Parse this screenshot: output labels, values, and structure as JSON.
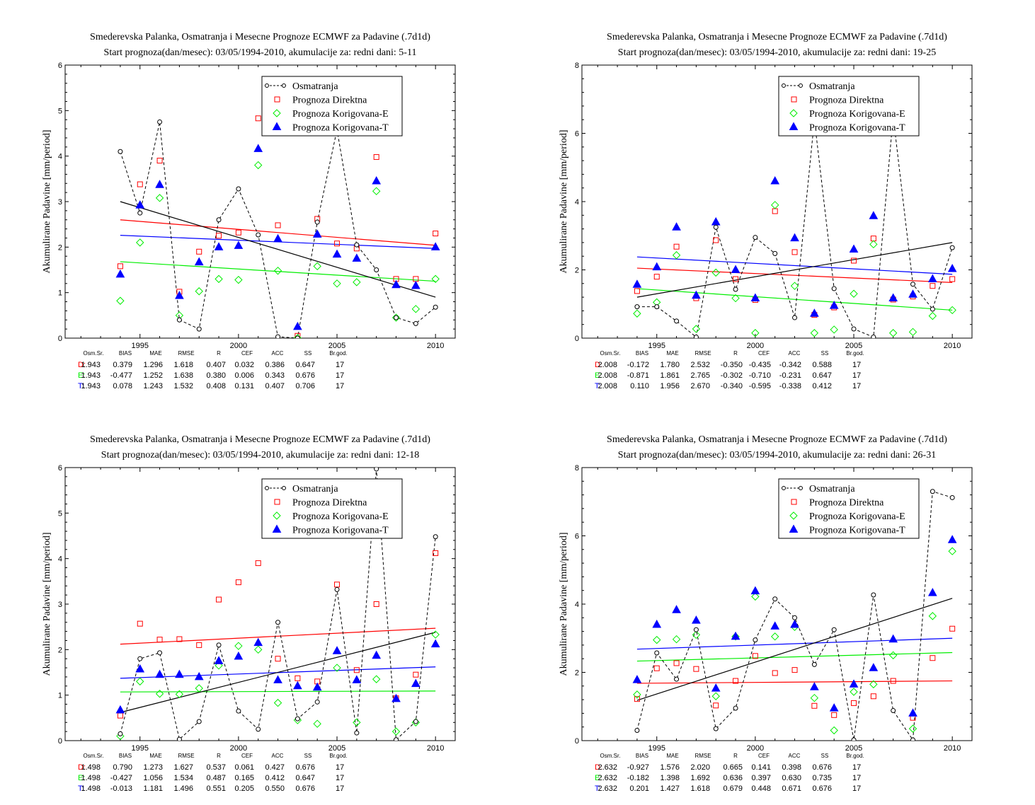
{
  "colors": {
    "obs": "#000000",
    "direct": "#ff0000",
    "corrE": "#00ee00",
    "corrT": "#0000ff"
  },
  "legend": [
    "Osmatranja",
    "Prognoza Direktna",
    "Prognoza Korigovana-E",
    "Prognoza Korigovana-T"
  ],
  "stats_header": [
    "Osm.Sr.",
    "BIAS",
    "MAE",
    "RMSE",
    "R",
    "CEF",
    "ACC",
    "SS",
    "Br.god."
  ],
  "chart_data": [
    {
      "type": "scatter",
      "title": "Smederevska Palanka, Osmatranja i Mesecne Prognoze ECMWF za Padavine (.7d1d)",
      "subtitle": "Start prognoza(dan/mesec): 03/05/1994-2010, akumulacije za: redni dani: 5-11",
      "ylabel": "Akumulirane Padavine [mm/period]",
      "xlabel": "",
      "xlim": [
        1991.2,
        2011
      ],
      "ylim": [
        0,
        6
      ],
      "x_ticks": [
        1995,
        2000,
        2005,
        2010
      ],
      "y_ticks": [
        0,
        1,
        2,
        3,
        4,
        5,
        6
      ],
      "x": [
        1994,
        1995,
        1996,
        1997,
        1998,
        1999,
        2000,
        2001,
        2002,
        2003,
        2004,
        2005,
        2006,
        2007,
        2008,
        2009,
        2010
      ],
      "series": [
        {
          "name": "Osmatranja",
          "values": [
            4.1,
            2.75,
            4.75,
            0.4,
            0.2,
            2.6,
            3.28,
            2.27,
            0.03,
            0.0,
            2.55,
            4.58,
            2.05,
            1.5,
            0.45,
            0.32,
            0.68
          ]
        },
        {
          "name": "Prognoza Direktna",
          "values": [
            1.58,
            3.38,
            3.9,
            1.02,
            1.9,
            2.25,
            2.32,
            4.83,
            2.48,
            0.05,
            2.62,
            2.08,
            1.97,
            3.98,
            1.3,
            1.3,
            2.3
          ]
        },
        {
          "name": "Prognoza Korigovana-E",
          "values": [
            0.82,
            2.1,
            3.08,
            0.5,
            1.03,
            1.3,
            1.28,
            3.8,
            1.48,
            0.0,
            1.58,
            1.2,
            1.23,
            3.23,
            0.45,
            0.64,
            1.3
          ]
        },
        {
          "name": "Prognoza Korigovana-T",
          "values": [
            1.4,
            2.92,
            3.37,
            0.93,
            1.67,
            2.0,
            2.03,
            4.16,
            2.18,
            0.25,
            2.28,
            1.84,
            1.75,
            3.45,
            1.17,
            1.15,
            2.0
          ]
        }
      ],
      "trends": {
        "obs": [
          3.0,
          0.9
        ],
        "direct": [
          2.6,
          2.04
        ],
        "corrE": [
          1.68,
          1.25
        ],
        "corrT": [
          2.26,
          1.97
        ]
      },
      "stats": [
        {
          "label": "D:",
          "values": [
            "1.943",
            "0.379",
            "1.296",
            "1.618",
            "0.407",
            "0.032",
            "0.386",
            "0.647",
            "17"
          ]
        },
        {
          "label": "E:",
          "values": [
            "1.943",
            "-0.477",
            "1.252",
            "1.638",
            "0.380",
            "0.006",
            "0.343",
            "0.676",
            "17"
          ]
        },
        {
          "label": "T:",
          "values": [
            "1.943",
            "0.078",
            "1.243",
            "1.532",
            "0.408",
            "0.131",
            "0.407",
            "0.706",
            "17"
          ]
        }
      ]
    },
    {
      "type": "scatter",
      "title": "Smederevska Palanka, Osmatranja i Mesecne Prognoze ECMWF za Padavine (.7d1d)",
      "subtitle": "Start prognoza(dan/mesec): 03/05/1994-2010, akumulacije za: redni dani: 19-25",
      "ylabel": "Akumulirane Padavine [mm/period]",
      "xlabel": "",
      "xlim": [
        1991.2,
        2011
      ],
      "ylim": [
        0,
        8
      ],
      "x_ticks": [
        1995,
        2000,
        2005,
        2010
      ],
      "y_ticks": [
        0,
        2,
        4,
        6,
        8
      ],
      "x": [
        1994,
        1995,
        1996,
        1997,
        1998,
        1999,
        2000,
        2001,
        2002,
        2003,
        2004,
        2005,
        2006,
        2007,
        2008,
        2009,
        2010
      ],
      "series": [
        {
          "name": "Osmatranja",
          "values": [
            0.92,
            0.92,
            0.5,
            0.03,
            3.25,
            1.43,
            2.95,
            2.48,
            0.6,
            6.4,
            1.45,
            0.27,
            0.03,
            6.5,
            1.58,
            0.85,
            2.65
          ]
        },
        {
          "name": "Prognoza Direktna",
          "values": [
            1.38,
            1.8,
            2.68,
            1.17,
            2.87,
            1.73,
            1.12,
            3.72,
            2.52,
            0.68,
            0.9,
            2.27,
            2.92,
            1.13,
            1.22,
            1.53,
            1.73
          ]
        },
        {
          "name": "Prognoza Korigovana-E",
          "values": [
            0.72,
            1.05,
            2.43,
            0.27,
            1.92,
            1.17,
            0.15,
            3.9,
            1.53,
            0.15,
            0.25,
            1.3,
            2.75,
            0.15,
            0.18,
            0.65,
            0.82
          ]
        },
        {
          "name": "Prognoza Korigovana-T",
          "values": [
            1.57,
            2.08,
            3.25,
            1.25,
            3.4,
            2.0,
            1.17,
            4.6,
            2.93,
            0.72,
            0.95,
            2.6,
            3.58,
            1.17,
            1.28,
            1.73,
            2.03
          ]
        }
      ],
      "trends": {
        "obs": [
          1.2,
          2.8
        ],
        "direct": [
          2.05,
          1.63
        ],
        "corrE": [
          1.45,
          0.82
        ],
        "corrT": [
          2.38,
          1.87
        ]
      },
      "stats": [
        {
          "label": "D:",
          "values": [
            "2.008",
            "-0.172",
            "1.780",
            "2.532",
            "-0.350",
            "-0.435",
            "-0.342",
            "0.588",
            "17"
          ]
        },
        {
          "label": "E:",
          "values": [
            "2.008",
            "-0.871",
            "1.861",
            "2.765",
            "-0.302",
            "-0.710",
            "-0.231",
            "0.647",
            "17"
          ]
        },
        {
          "label": "T:",
          "values": [
            "2.008",
            "0.110",
            "1.956",
            "2.670",
            "-0.340",
            "-0.595",
            "-0.338",
            "0.412",
            "17"
          ]
        }
      ]
    },
    {
      "type": "scatter",
      "title": "Smederevska Palanka, Osmatranja i Mesecne Prognoze ECMWF za Padavine (.7d1d)",
      "subtitle": "Start prognoza(dan/mesec): 03/05/1994-2010, akumulacije za: redni dani: 12-18",
      "ylabel": "Akumulirane Padavine [mm/period]",
      "xlabel": "",
      "xlim": [
        1991.2,
        2011
      ],
      "ylim": [
        0,
        6
      ],
      "x_ticks": [
        1995,
        2000,
        2005,
        2010
      ],
      "y_ticks": [
        0,
        1,
        2,
        3,
        4,
        5,
        6
      ],
      "x": [
        1994,
        1995,
        1996,
        1997,
        1998,
        1999,
        2000,
        2001,
        2002,
        2003,
        2004,
        2005,
        2006,
        2007,
        2008,
        2009,
        2010
      ],
      "series": [
        {
          "name": "Osmatranja",
          "values": [
            0.15,
            1.8,
            1.93,
            0.03,
            0.42,
            2.1,
            0.65,
            0.25,
            2.6,
            0.48,
            0.85,
            3.32,
            0.17,
            5.97,
            0.02,
            0.42,
            4.48
          ]
        },
        {
          "name": "Prognoza Direktna",
          "values": [
            0.55,
            2.57,
            2.22,
            2.23,
            2.1,
            3.1,
            3.48,
            3.9,
            1.8,
            1.37,
            1.3,
            3.43,
            1.55,
            3.0,
            0.93,
            1.45,
            4.12
          ]
        },
        {
          "name": "Prognoza Korigovana-E",
          "values": [
            0.1,
            1.3,
            1.03,
            1.02,
            1.15,
            1.65,
            2.08,
            2.0,
            0.83,
            0.45,
            0.37,
            1.6,
            0.4,
            1.35,
            0.2,
            0.4,
            2.33
          ]
        },
        {
          "name": "Prognoza Korigovana-T",
          "values": [
            0.67,
            1.57,
            1.45,
            1.45,
            1.4,
            1.75,
            1.85,
            2.15,
            1.33,
            1.2,
            1.17,
            1.97,
            1.33,
            1.87,
            0.92,
            1.25,
            2.12
          ]
        }
      ],
      "trends": {
        "obs": [
          0.62,
          2.38
        ],
        "direct": [
          2.12,
          2.47
        ],
        "corrE": [
          1.07,
          1.09
        ],
        "corrT": [
          1.37,
          1.62
        ]
      },
      "stats": [
        {
          "label": "D:",
          "values": [
            "1.498",
            "0.790",
            "1.273",
            "1.627",
            "0.537",
            "0.061",
            "0.427",
            "0.676",
            "17"
          ]
        },
        {
          "label": "E:",
          "values": [
            "1.498",
            "-0.427",
            "1.056",
            "1.534",
            "0.487",
            "0.165",
            "0.412",
            "0.647",
            "17"
          ]
        },
        {
          "label": "T:",
          "values": [
            "1.498",
            "-0.013",
            "1.181",
            "1.496",
            "0.551",
            "0.205",
            "0.550",
            "0.676",
            "17"
          ]
        }
      ]
    },
    {
      "type": "scatter",
      "title": "Smederevska Palanka, Osmatranja i Mesecne Prognoze ECMWF za Padavine (.7d1d)",
      "subtitle": "Start prognoza(dan/mesec): 03/05/1994-2010, akumulacije za: redni dani: 26-31",
      "ylabel": "Akumulirane Padavine [mm/period]",
      "xlabel": "",
      "xlim": [
        1991.2,
        2011
      ],
      "ylim": [
        0,
        8
      ],
      "x_ticks": [
        1995,
        2000,
        2005,
        2010
      ],
      "y_ticks": [
        0,
        2,
        4,
        6,
        8
      ],
      "x": [
        1994,
        1995,
        1996,
        1997,
        1998,
        1999,
        2000,
        2001,
        2002,
        2003,
        2004,
        2005,
        2006,
        2007,
        2008,
        2009,
        2010
      ],
      "series": [
        {
          "name": "Osmatranja",
          "values": [
            0.3,
            2.57,
            1.8,
            3.25,
            0.35,
            0.95,
            2.95,
            4.15,
            3.6,
            2.23,
            3.25,
            0.02,
            4.27,
            0.88,
            0.02,
            7.3,
            7.12
          ]
        },
        {
          "name": "Prognoza Direktna",
          "values": [
            1.22,
            2.12,
            2.27,
            2.1,
            1.03,
            1.75,
            2.48,
            1.98,
            2.07,
            1.02,
            0.75,
            1.1,
            1.3,
            1.75,
            0.67,
            2.42,
            3.28
          ]
        },
        {
          "name": "Prognoza Korigovana-E",
          "values": [
            1.35,
            2.95,
            2.97,
            3.1,
            1.3,
            3.05,
            4.22,
            3.05,
            3.33,
            1.25,
            0.3,
            1.43,
            1.65,
            2.5,
            0.35,
            3.65,
            5.55
          ]
        },
        {
          "name": "Prognoza Korigovana-T",
          "values": [
            1.78,
            3.4,
            3.83,
            3.52,
            1.53,
            3.05,
            4.38,
            3.35,
            3.4,
            1.57,
            0.95,
            1.65,
            2.13,
            2.97,
            0.8,
            4.33,
            5.88
          ]
        }
      ],
      "trends": {
        "obs": [
          1.18,
          4.17
        ],
        "direct": [
          1.68,
          1.75
        ],
        "corrE": [
          2.33,
          2.58
        ],
        "corrT": [
          2.68,
          3.0
        ]
      },
      "stats": [
        {
          "label": "D:",
          "values": [
            "2.632",
            "-0.927",
            "1.576",
            "2.020",
            "0.665",
            "0.141",
            "0.398",
            "0.676",
            "17"
          ]
        },
        {
          "label": "E:",
          "values": [
            "2.632",
            "-0.182",
            "1.398",
            "1.692",
            "0.636",
            "0.397",
            "0.630",
            "0.735",
            "17"
          ]
        },
        {
          "label": "T:",
          "values": [
            "2.632",
            "0.201",
            "1.427",
            "1.618",
            "0.679",
            "0.448",
            "0.671",
            "0.676",
            "17"
          ]
        }
      ]
    }
  ]
}
